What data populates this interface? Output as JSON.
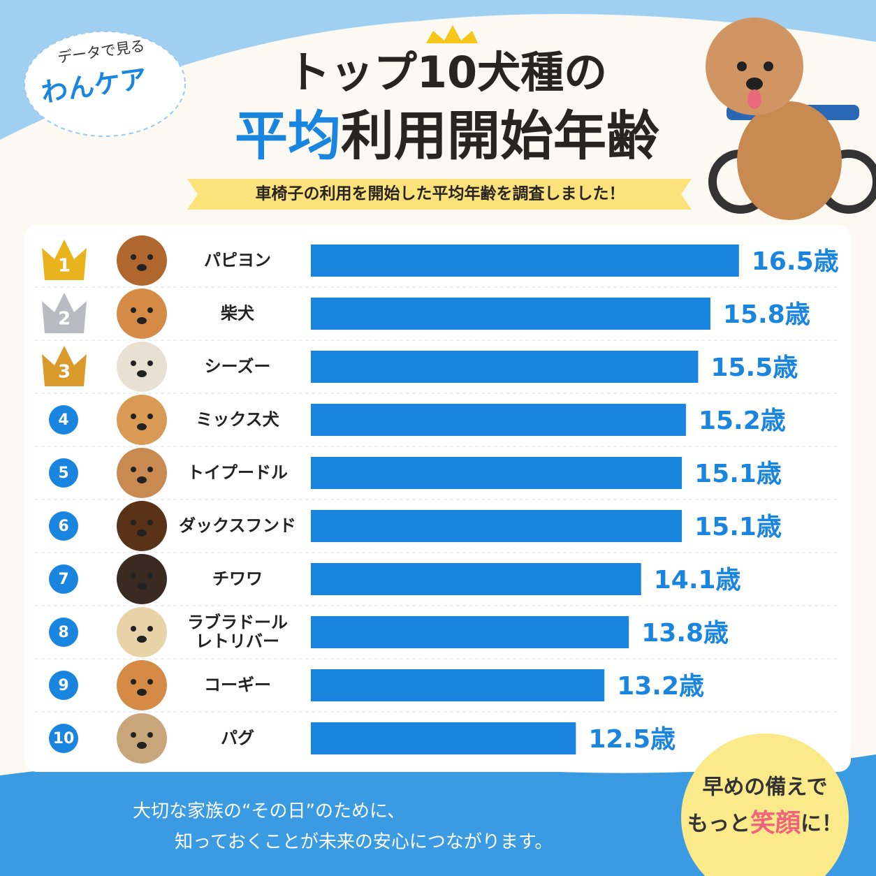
{
  "badge": {
    "top": "データで見る",
    "brand": "わんケア"
  },
  "chart_data": {
    "type": "hbar",
    "title": "トップ10犬種の",
    "title_highlight": "平均",
    "title_rest": "利用開始年齢",
    "subtitle": "車椅子の利用を開始した平均年齢を調査しました！",
    "ranks": [
      1,
      2,
      3,
      4,
      5,
      6,
      7,
      8,
      9,
      10
    ],
    "categories": [
      "パピヨン",
      "柴犬",
      "シーズー",
      "ミックス犬",
      "トイプードル",
      "ダックスフンド",
      "チワワ",
      "ラブラドール\nレトリバー",
      "コーギー",
      "パグ"
    ],
    "values": [
      16.5,
      15.8,
      15.5,
      15.2,
      15.1,
      15.1,
      14.1,
      13.8,
      13.2,
      12.5
    ],
    "value_labels": [
      "16.5歳",
      "15.8歳",
      "15.5歳",
      "15.2歳",
      "15.1歳",
      "15.1歳",
      "14.1歳",
      "13.8歳",
      "13.2歳",
      "12.5歳"
    ],
    "color": "#1a85de",
    "xlim": [
      6,
      17
    ]
  },
  "footer": {
    "line1": "大切な家族の“その日”のために、",
    "line2": "知っておくことが未来の安心につながります。"
  },
  "bubble": {
    "line1": "早めの備えで",
    "pre": "もっと",
    "highlight": "笑顔",
    "post": "に！"
  }
}
